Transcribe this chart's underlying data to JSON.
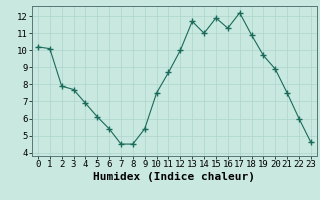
{
  "x": [
    0,
    1,
    2,
    3,
    4,
    5,
    6,
    7,
    8,
    9,
    10,
    11,
    12,
    13,
    14,
    15,
    16,
    17,
    18,
    19,
    20,
    21,
    22,
    23
  ],
  "y": [
    10.2,
    10.1,
    7.9,
    7.7,
    6.9,
    6.1,
    5.4,
    4.5,
    4.5,
    5.4,
    7.5,
    8.7,
    10.0,
    11.7,
    11.0,
    11.9,
    11.3,
    12.2,
    10.9,
    9.7,
    8.9,
    7.5,
    6.0,
    4.6
  ],
  "xlabel": "Humidex (Indice chaleur)",
  "ylim": [
    3.8,
    12.6
  ],
  "yticks": [
    4,
    5,
    6,
    7,
    8,
    9,
    10,
    11,
    12
  ],
  "xticks": [
    0,
    1,
    2,
    3,
    4,
    5,
    6,
    7,
    8,
    9,
    10,
    11,
    12,
    13,
    14,
    15,
    16,
    17,
    18,
    19,
    20,
    21,
    22,
    23
  ],
  "line_color": "#1a6b5a",
  "marker": "+",
  "marker_size": 4,
  "bg_color": "#c8e8e0",
  "grid_color": "#aed4cc",
  "tick_label_fontsize": 6.5,
  "xlabel_fontsize": 8
}
